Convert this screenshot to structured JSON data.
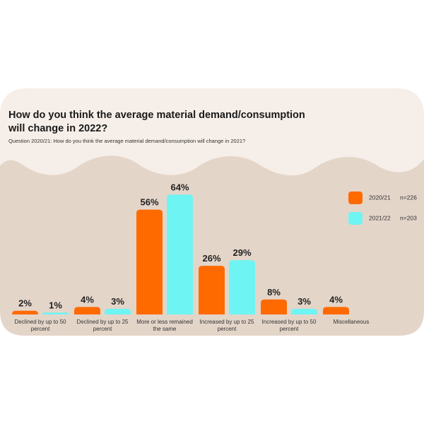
{
  "chart_data": {
    "type": "bar",
    "title": "How do you think the average material demand/consumption will change in 2022?",
    "subtitle": "Question 2020/21: How do you think the average material demand/consumption will change in 2021?",
    "categories": [
      "Declined by up to 50 percent",
      "Declined by up to 25 percent",
      "More or less remained the same",
      "Increased by up to 25 percent",
      "Increased by up to 50 percent",
      "Miscellaneous"
    ],
    "series": [
      {
        "name": "2020/21",
        "n": "n=226",
        "color": "#ff6a00",
        "values": [
          2,
          4,
          56,
          26,
          8,
          4
        ],
        "value_labels": [
          "2%",
          "4%",
          "56%",
          "26%",
          "8%",
          "4%"
        ]
      },
      {
        "name": "2021/22",
        "n": "n=203",
        "color": "#6ff4f4",
        "values": [
          1,
          3,
          64,
          29,
          3,
          null
        ],
        "value_labels": [
          "1%",
          "3%",
          "64%",
          "29%",
          "3%",
          null
        ]
      }
    ],
    "legend": "right"
  }
}
